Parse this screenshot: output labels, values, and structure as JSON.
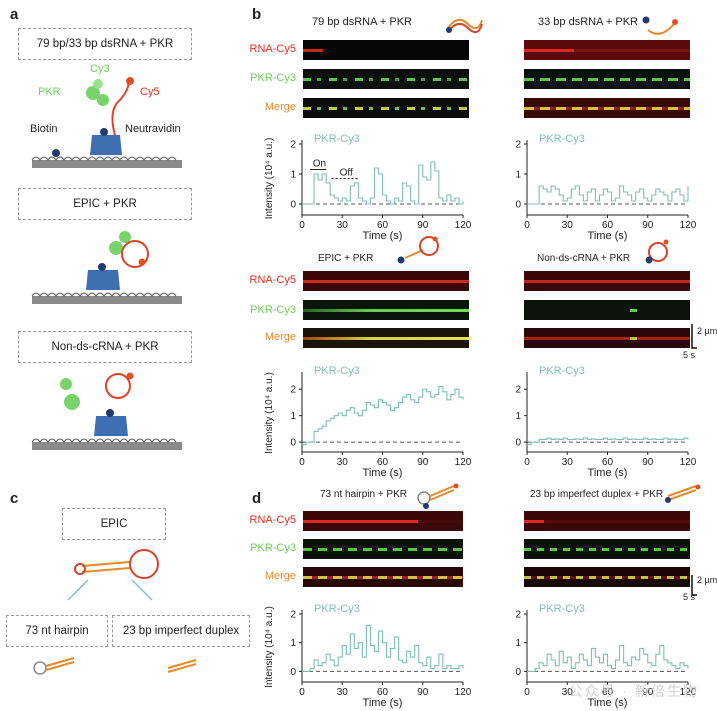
{
  "panels": {
    "a": {
      "letter": "a",
      "box1": "79 bp/33 bp dsRNA + PKR",
      "labels": {
        "cy3": "Cy3",
        "pkr": "PKR",
        "cy5": "Cy5",
        "biotin": "Biotin",
        "neutravidin": "Neutravidin"
      },
      "box2": "EPIC + PKR",
      "box3": "Non-ds-cRNA + PKR"
    },
    "b": {
      "letter": "b",
      "cond1": "79 bp dsRNA + PKR",
      "cond2": "33 bp dsRNA + PKR",
      "cond3": "EPIC + PKR",
      "cond4": "Non-ds-cRNA + PKR",
      "rows": {
        "rna": "RNA-Cy5",
        "pkr": "PKR-Cy3",
        "merge": "Merge"
      },
      "scale_x": "5 s",
      "scale_y": "2 µm",
      "on_label": "On",
      "off_label": "Off"
    },
    "c": {
      "letter": "c",
      "top": "EPIC",
      "left": "73 nt hairpin",
      "right": "23 bp imperfect duplex"
    },
    "d": {
      "letter": "d",
      "cond1": "73 nt hairpin + PKR",
      "cond2": "23 bp imperfect duplex + PKR",
      "rows": {
        "rna": "RNA-Cy5",
        "pkr": "PKR-Cy3",
        "merge": "Merge"
      },
      "scale_x": "5 s",
      "scale_y": "2 µm"
    },
    "watermark": "公众号 · 新倍生物"
  },
  "colors": {
    "trace": "#7fbdb9",
    "red": "#e03020",
    "green": "#6ccf5a",
    "orange": "#e58a2a",
    "navy": "#233a6e",
    "blue": "#3e6fb0"
  },
  "chart_data": [
    {
      "type": "line",
      "id": "b1",
      "series_name": "PKR-Cy3",
      "xlabel": "Time (s)",
      "ylabel": "Intensity (10⁴ a.u.)",
      "xlim": [
        0,
        120
      ],
      "ylim": [
        -0.3,
        2
      ],
      "xticks": [
        0,
        30,
        60,
        90,
        120
      ],
      "yticks": [
        0,
        1,
        2
      ],
      "x": [
        0,
        3,
        6,
        9,
        12,
        15,
        18,
        21,
        24,
        27,
        30,
        33,
        36,
        39,
        42,
        45,
        48,
        51,
        54,
        57,
        60,
        63,
        66,
        69,
        72,
        75,
        78,
        81,
        84,
        87,
        90,
        93,
        96,
        99,
        102,
        105,
        108,
        111,
        114,
        117,
        120
      ],
      "values": [
        0,
        0,
        0,
        1,
        0.8,
        1.0,
        0.7,
        0.3,
        0.2,
        0.1,
        0.2,
        0.1,
        0.6,
        0.7,
        0.2,
        0.1,
        0.0,
        0.2,
        1.2,
        1.0,
        0.3,
        0.1,
        0.0,
        0.2,
        0.1,
        0.7,
        0.6,
        0.1,
        0.0,
        1.3,
        0.9,
        0.8,
        1.4,
        1.1,
        0.2,
        0.1,
        0.3,
        0.1,
        0.2,
        0.0,
        0.1
      ]
    },
    {
      "type": "line",
      "id": "b2",
      "series_name": "PKR-Cy3",
      "xlabel": "Time (s)",
      "ylabel": "",
      "xlim": [
        0,
        120
      ],
      "ylim": [
        -0.3,
        2
      ],
      "xticks": [
        0,
        30,
        60,
        90,
        120
      ],
      "yticks": [
        0,
        1,
        2
      ],
      "x": [
        0,
        3,
        6,
        9,
        12,
        15,
        18,
        21,
        24,
        27,
        30,
        33,
        36,
        39,
        42,
        45,
        48,
        51,
        54,
        57,
        60,
        63,
        66,
        69,
        72,
        75,
        78,
        81,
        84,
        87,
        90,
        93,
        96,
        99,
        102,
        105,
        108,
        111,
        114,
        117,
        120
      ],
      "values": [
        0,
        0,
        0,
        0.6,
        0.5,
        0.4,
        0.6,
        0.5,
        0.3,
        0.1,
        0.2,
        0.5,
        0.6,
        0.3,
        0.1,
        0.4,
        0.5,
        0.1,
        0.3,
        0.5,
        0.4,
        0.1,
        0.2,
        0.6,
        0.4,
        0.3,
        0.1,
        0.4,
        0.5,
        0.2,
        0.1,
        0.3,
        0.5,
        0.4,
        0.3,
        0.1,
        0.4,
        0.5,
        0.3,
        0.1,
        0.6
      ]
    },
    {
      "type": "line",
      "id": "b3",
      "series_name": "PKR-Cy3",
      "xlabel": "Time (s)",
      "ylabel": "Intensity (10⁴ a.u.)",
      "xlim": [
        0,
        120
      ],
      "ylim": [
        -0.3,
        2.5
      ],
      "xticks": [
        0,
        30,
        60,
        90,
        120
      ],
      "yticks": [
        0,
        1,
        2
      ],
      "x": [
        0,
        3,
        6,
        9,
        12,
        15,
        18,
        21,
        24,
        27,
        30,
        33,
        36,
        39,
        42,
        45,
        48,
        51,
        54,
        57,
        60,
        63,
        66,
        69,
        72,
        75,
        78,
        81,
        84,
        87,
        90,
        93,
        96,
        99,
        102,
        105,
        108,
        111,
        114,
        117,
        120
      ],
      "values": [
        -0.1,
        0,
        0,
        0.4,
        0.5,
        0.6,
        0.8,
        0.9,
        1.0,
        1.1,
        1.0,
        1.2,
        1.3,
        1.1,
        1.0,
        1.2,
        1.5,
        1.4,
        1.3,
        1.6,
        1.5,
        1.4,
        1.2,
        1.3,
        1.5,
        1.7,
        1.8,
        1.6,
        1.5,
        1.7,
        2.0,
        1.9,
        1.7,
        1.8,
        2.1,
        1.9,
        1.6,
        1.8,
        2.0,
        1.7,
        1.6
      ]
    },
    {
      "type": "line",
      "id": "b4",
      "series_name": "PKR-Cy3",
      "xlabel": "Time (s)",
      "ylabel": "",
      "xlim": [
        0,
        120
      ],
      "ylim": [
        -0.3,
        2.5
      ],
      "xticks": [
        0,
        30,
        60,
        90,
        120
      ],
      "yticks": [
        0,
        1,
        2
      ],
      "x": [
        0,
        3,
        6,
        9,
        12,
        15,
        18,
        21,
        24,
        27,
        30,
        33,
        36,
        39,
        42,
        45,
        48,
        51,
        54,
        57,
        60,
        63,
        66,
        69,
        72,
        75,
        78,
        81,
        84,
        87,
        90,
        93,
        96,
        99,
        102,
        105,
        108,
        111,
        114,
        117,
        120
      ],
      "values": [
        -0.1,
        0,
        0,
        0.1,
        0.1,
        0.15,
        0.1,
        0.12,
        0.1,
        0.15,
        0.1,
        0.1,
        0.12,
        0.1,
        0.15,
        0.1,
        0.12,
        0.1,
        0.1,
        0.15,
        0.1,
        0.12,
        0.1,
        0.1,
        0.15,
        0.1,
        0.12,
        0.1,
        0.1,
        0.15,
        0.1,
        0.12,
        0.1,
        0.1,
        0.15,
        0.1,
        0.12,
        0.1,
        0.1,
        0.15,
        0.1
      ]
    },
    {
      "type": "line",
      "id": "d1",
      "series_name": "PKR-Cy3",
      "xlabel": "Time (s)",
      "ylabel": "Intensity (10⁴ a.u.)",
      "xlim": [
        0,
        120
      ],
      "ylim": [
        -0.3,
        2
      ],
      "xticks": [
        0,
        30,
        60,
        90,
        120
      ],
      "yticks": [
        0,
        1,
        2
      ],
      "x": [
        0,
        3,
        6,
        9,
        12,
        15,
        18,
        21,
        24,
        27,
        30,
        33,
        36,
        39,
        42,
        45,
        48,
        51,
        54,
        57,
        60,
        63,
        66,
        69,
        72,
        75,
        78,
        81,
        84,
        87,
        90,
        93,
        96,
        99,
        102,
        105,
        108,
        111,
        114,
        117,
        120
      ],
      "values": [
        0,
        0,
        0.1,
        0.4,
        0.2,
        0.3,
        0.6,
        0.4,
        0.2,
        0.5,
        0.9,
        0.6,
        1.3,
        0.8,
        1.0,
        0.5,
        1.6,
        0.9,
        0.7,
        1.4,
        1.0,
        0.5,
        0.8,
        1.2,
        0.4,
        0.3,
        0.7,
        0.5,
        0.9,
        0.3,
        0.2,
        0.5,
        0.1,
        0.2,
        0.6,
        0.1,
        0.2,
        0.1,
        0.1,
        0.2,
        0.1
      ]
    },
    {
      "type": "line",
      "id": "d2",
      "series_name": "PKR-Cy3",
      "xlabel": "Time (s)",
      "ylabel": "",
      "xlim": [
        0,
        120
      ],
      "ylim": [
        -0.3,
        2
      ],
      "xticks": [
        0,
        30,
        60,
        90,
        120
      ],
      "yticks": [
        0,
        1,
        2
      ],
      "x": [
        0,
        3,
        6,
        9,
        12,
        15,
        18,
        21,
        24,
        27,
        30,
        33,
        36,
        39,
        42,
        45,
        48,
        51,
        54,
        57,
        60,
        63,
        66,
        69,
        72,
        75,
        78,
        81,
        84,
        87,
        90,
        93,
        96,
        99,
        102,
        105,
        108,
        111,
        114,
        117,
        120
      ],
      "values": [
        0,
        0,
        0.1,
        0.3,
        0.2,
        0.6,
        0.4,
        0.2,
        0.7,
        0.3,
        0.5,
        0.1,
        0.3,
        0.6,
        0.4,
        0.2,
        0.8,
        0.5,
        0.3,
        0.6,
        0.2,
        0.1,
        0.4,
        0.9,
        0.3,
        0.2,
        0.5,
        0.4,
        0.8,
        0.6,
        0.3,
        0.2,
        0.6,
        0.9,
        0.4,
        0.3,
        0.2,
        0.1,
        0.3,
        0.2,
        0.1
      ]
    }
  ]
}
